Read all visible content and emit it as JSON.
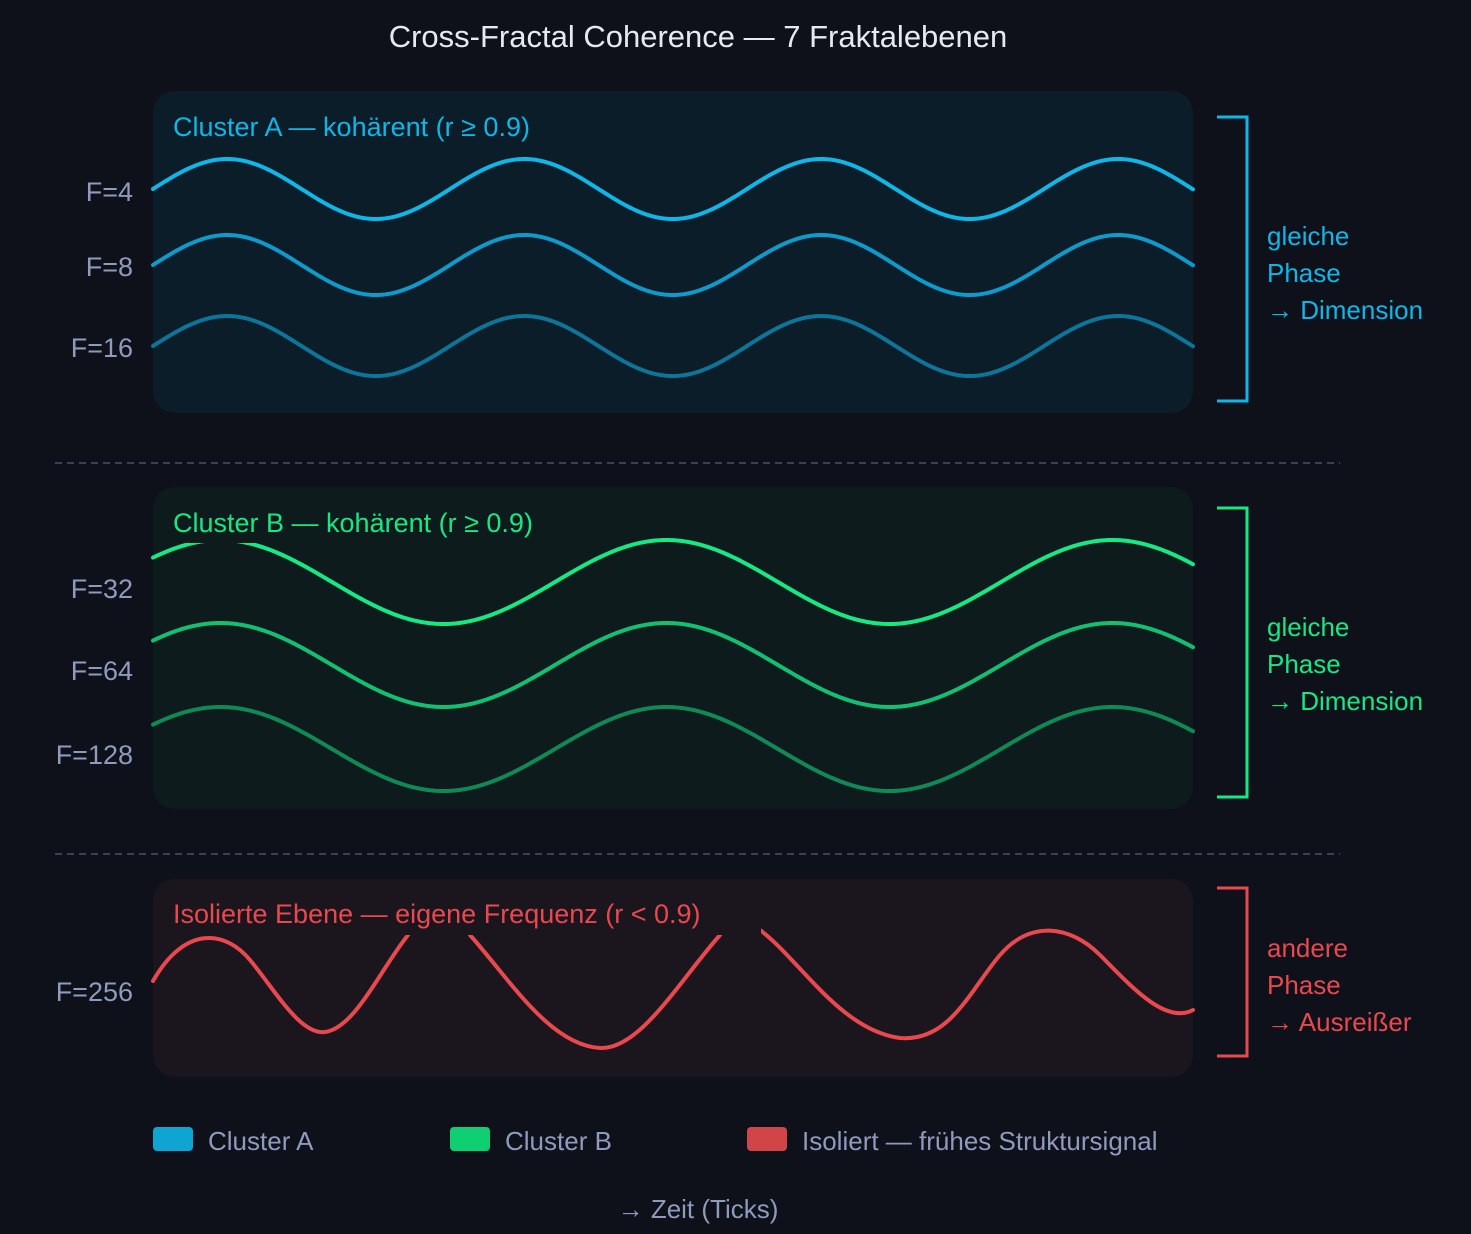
{
  "title": "Cross-Fractal Coherence — 7 Fraktalebenen",
  "colors": {
    "background": "#0e111a",
    "label": "#8e9bbd",
    "divider": "#3a4152"
  },
  "clusters": [
    {
      "id": "a",
      "title": "Cluster A — kohärent (r ≥ 0.9)",
      "color": "#0fb7e8",
      "panel_fill": "#0b1d29",
      "annotation": [
        "gleiche",
        "Phase",
        "→ Dimension"
      ],
      "waves": [
        {
          "label": "F=4",
          "color": "#0fb7e8"
        },
        {
          "label": "F=8",
          "color": "#0e9acb"
        },
        {
          "label": "F=16",
          "color": "#0c7599"
        }
      ]
    },
    {
      "id": "b",
      "title": "Cluster B — kohärent (r ≥ 0.9)",
      "color": "#16e884",
      "panel_fill": "#0d1b1d",
      "annotation": [
        "gleiche",
        "Phase",
        "→ Dimension"
      ],
      "waves": [
        {
          "label": "F=32",
          "color": "#16e884"
        },
        {
          "label": "F=64",
          "color": "#13c072"
        },
        {
          "label": "F=128",
          "color": "#0f8a56"
        }
      ]
    },
    {
      "id": "iso",
      "title": "Isolierte Ebene — eigene Frequenz (r < 0.9)",
      "color": "#e8484e",
      "panel_fill": "#1b161d",
      "annotation": [
        "andere",
        "Phase",
        "→ Ausreißer"
      ],
      "waves": [
        {
          "label": "F=256",
          "color": "#e8484e"
        }
      ]
    }
  ],
  "legend": [
    {
      "label": "Cluster A",
      "color": "#0ea5d3"
    },
    {
      "label": "Cluster B",
      "color": "#0fcf73"
    },
    {
      "label": "Isoliert — frühes Struktursignal",
      "color": "#d14448"
    }
  ],
  "x_axis_label": "→ Zeit (Ticks)"
}
